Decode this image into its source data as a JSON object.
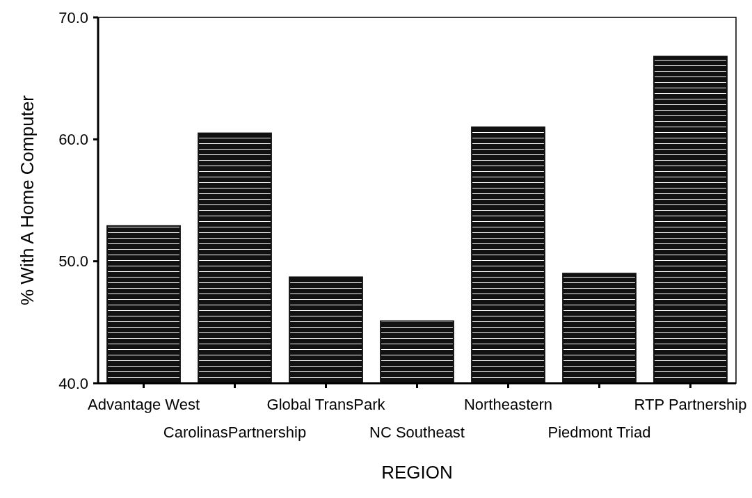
{
  "chart_data": {
    "type": "bar",
    "xlabel": "REGION",
    "ylabel": "% With A Home Computer",
    "categories": [
      "Advantage West",
      "CarolinasPartnership",
      "Global TransPark",
      "NC Southeast",
      "Northeastern",
      "Piedmont Triad",
      "RTP Partnership"
    ],
    "values": [
      52.9,
      60.5,
      48.7,
      45.1,
      61.0,
      49.0,
      66.8
    ],
    "color": "#111111",
    "ylim": [
      40,
      70
    ],
    "yticks": [
      {
        "value": 40,
        "label": "40.0"
      },
      {
        "value": 50,
        "label": "50.0"
      },
      {
        "value": 60,
        "label": "60.0"
      },
      {
        "value": 70,
        "label": "70.0"
      }
    ],
    "grid": false
  }
}
